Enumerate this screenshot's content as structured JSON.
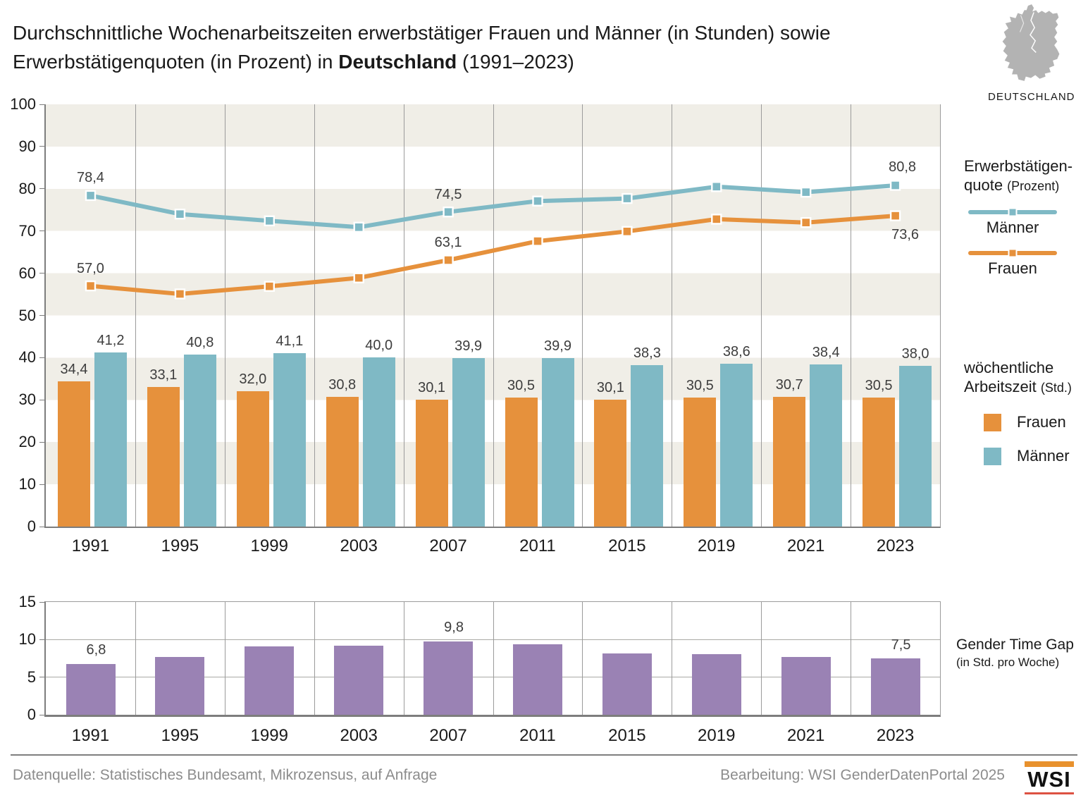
{
  "title": {
    "line1": "Durchschnittliche Wochenarbeitszeiten erwerbstätiger Frauen und Männer (in Stunden) sowie",
    "line2_prefix": "Erwerbstätigenquoten (in Prozent) in ",
    "line2_bold": "Deutschland",
    "line2_suffix": " (1991–2023)"
  },
  "map": {
    "label": "DEUTSCHLAND",
    "color": "#b3b3b3"
  },
  "colors": {
    "frauen": "#e6913c",
    "maenner": "#7fb9c5",
    "gap": "#9a82b4",
    "band": "#f0eee7"
  },
  "legend_rate": {
    "title_line1": "Erwerbstätigen-",
    "title_line2": "quote ",
    "title_unit": "(Prozent)",
    "items": [
      {
        "label": "Männer",
        "color": "#7fb9c5"
      },
      {
        "label": "Frauen",
        "color": "#e6913c"
      }
    ]
  },
  "legend_hours": {
    "title_line1": "wöchentliche",
    "title_line2": "Arbeitszeit ",
    "title_unit": "(Std.)",
    "items": [
      {
        "label": "Frauen",
        "color": "#e6913c"
      },
      {
        "label": "Männer",
        "color": "#7fb9c5"
      }
    ]
  },
  "gap_legend": {
    "line1": "Gender Time Gap",
    "line2": "(in Std. pro Woche)"
  },
  "footer": {
    "source": "Datenquelle: Statistisches Bundesamt, Mikrozensus, auf Anfrage",
    "editing": "Bearbeitung: WSI GenderDatenPortal 2025",
    "logo": "WSI"
  },
  "chart_data": [
    {
      "type": "bar+line combo",
      "categories": [
        "1991",
        "1995",
        "1999",
        "2003",
        "2007",
        "2011",
        "2015",
        "2019",
        "2021",
        "2023"
      ],
      "ylim": [
        0,
        100
      ],
      "yticks": [
        0,
        10,
        20,
        30,
        40,
        50,
        60,
        70,
        80,
        90,
        100
      ],
      "grid": "vertical category separators, alternating horizontal bands every 10 units",
      "legend_position": "right",
      "bars_title": "wöchentliche Arbeitszeit (Std.)",
      "bar_series": [
        {
          "name": "Frauen",
          "color": "#e6913c",
          "values": [
            34.4,
            33.1,
            32.0,
            30.8,
            30.1,
            30.5,
            30.1,
            30.5,
            30.7,
            30.5
          ],
          "labels": [
            "34,4",
            "33,1",
            "32,0",
            "30,8",
            "30,1",
            "30,5",
            "30,1",
            "30,5",
            "30,7",
            "30,5"
          ]
        },
        {
          "name": "Männer",
          "color": "#7fb9c5",
          "values": [
            41.2,
            40.8,
            41.1,
            40.0,
            39.9,
            39.9,
            38.3,
            38.6,
            38.4,
            38.0
          ],
          "labels": [
            "41,2",
            "40,8",
            "41,1",
            "40,0",
            "39,9",
            "39,9",
            "38,3",
            "38,6",
            "38,4",
            "38,0"
          ]
        }
      ],
      "lines_title": "Erwerbstätigenquote (Prozent)",
      "line_series": [
        {
          "name": "Männer",
          "color": "#7fb9c5",
          "values": [
            78.4,
            74.0,
            72.4,
            70.9,
            74.5,
            77.1,
            77.7,
            80.5,
            79.2,
            80.8
          ],
          "labels": [
            "78,4",
            null,
            null,
            null,
            "74,5",
            null,
            null,
            null,
            null,
            "80,8"
          ]
        },
        {
          "name": "Frauen",
          "color": "#e6913c",
          "values": [
            57.0,
            55.1,
            56.9,
            58.9,
            63.1,
            67.6,
            69.9,
            72.8,
            72.0,
            73.6
          ],
          "labels": [
            "57,0",
            null,
            null,
            null,
            "63,1",
            null,
            null,
            null,
            null,
            "73,6"
          ]
        }
      ]
    },
    {
      "type": "bar",
      "title": "Gender Time Gap (in Std. pro Woche)",
      "categories": [
        "1991",
        "1995",
        "1999",
        "2003",
        "2007",
        "2011",
        "2015",
        "2019",
        "2021",
        "2023"
      ],
      "ylim": [
        0,
        15
      ],
      "yticks": [
        0,
        5,
        10,
        15
      ],
      "grid": "horizontal lines at 5/10/15 and vertical category separators",
      "series": [
        {
          "name": "Gender Time Gap",
          "color": "#9a82b4",
          "values": [
            6.8,
            7.7,
            9.1,
            9.2,
            9.8,
            9.4,
            8.2,
            8.1,
            7.7,
            7.5
          ],
          "labels": [
            "6,8",
            null,
            null,
            null,
            "9,8",
            null,
            null,
            null,
            null,
            "7,5"
          ]
        }
      ]
    }
  ]
}
